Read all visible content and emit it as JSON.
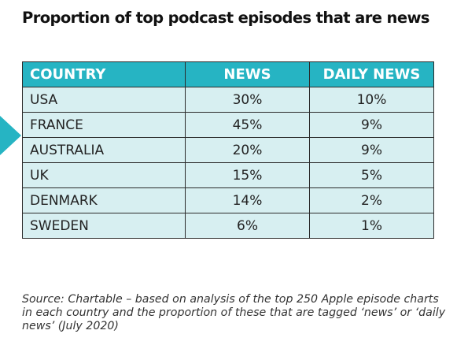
{
  "title": "Proportion of top podcast episodes that are news",
  "colors": {
    "header_bg": "#26b4c3",
    "row_bg": "#d7eff1",
    "accent": "#26b4c3"
  },
  "chart_data": {
    "type": "table",
    "title": "Proportion of top podcast episodes that are news",
    "columns": [
      "COUNTRY",
      "NEWS",
      "DAILY NEWS"
    ],
    "rows": [
      [
        "USA",
        "30%",
        "10%"
      ],
      [
        "FRANCE",
        "45%",
        "9%"
      ],
      [
        "AUSTRALIA",
        "20%",
        "9%"
      ],
      [
        "UK",
        "15%",
        "5%"
      ],
      [
        "DENMARK",
        "14%",
        "2%"
      ],
      [
        "SWEDEN",
        "6%",
        "1%"
      ]
    ],
    "highlighted_row": "FRANCE"
  },
  "source": "Source: Chartable – based on analysis of the top 250 Apple episode charts in each country and the proportion of these that are tagged ‘news’ or ‘daily news’ (July 2020)"
}
